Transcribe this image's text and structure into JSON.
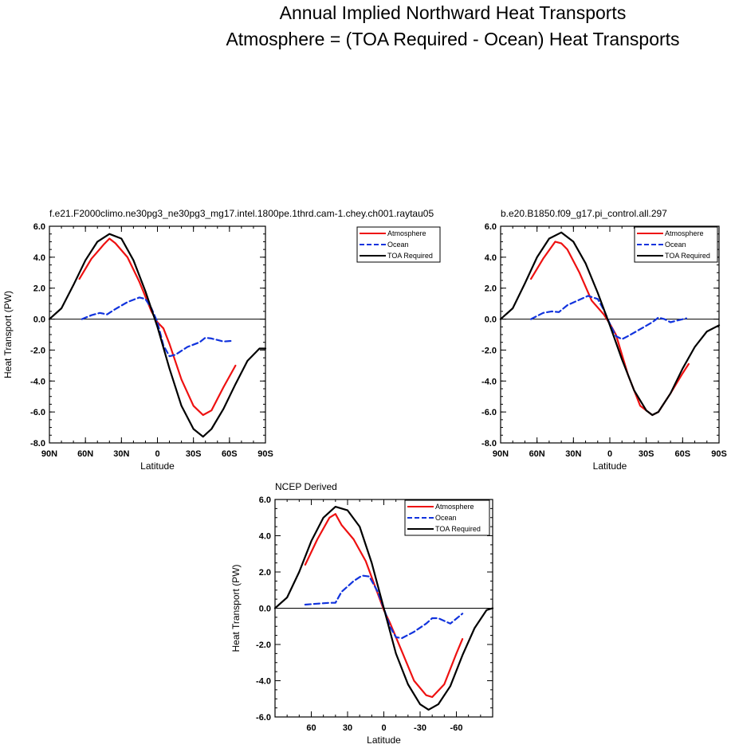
{
  "figure": {
    "title_line1": "Annual Implied Northward Heat Transports",
    "title_line2": "Atmosphere = (TOA Required - Ocean) Heat Transports"
  },
  "colors": {
    "Atmosphere": "#ee1111",
    "Ocean": "#1133dd",
    "TOA Required": "#000000"
  },
  "chart_data": [
    {
      "type": "line",
      "title": "f.e21.F2000climo.ne30pg3_ne30pg3_mg17.intel.1800pe.1thrd.cam-1.chey.ch001.raytau05",
      "xlabel": "Latitude",
      "ylabel": "Heat Transport (PW)",
      "xlim": [
        90,
        -90
      ],
      "ylim": [
        -8,
        6
      ],
      "xticks": [
        90,
        60,
        30,
        0,
        -30,
        -60,
        -90
      ],
      "xtick_labels": [
        "90N",
        "60N",
        "30N",
        "0",
        "30S",
        "60S",
        "90S"
      ],
      "yticks": [
        6,
        4,
        2,
        0,
        -2,
        -4,
        -6,
        -8
      ],
      "ytick_labels": [
        "6.0",
        "4.0",
        "2.0",
        "0.0",
        "-2.0",
        "-4.0",
        "-6.0",
        "-8.0"
      ],
      "legend": "top-right",
      "series": [
        {
          "name": "Atmosphere",
          "style": "solid",
          "x": [
            65,
            55,
            45,
            40,
            35,
            25,
            15,
            5,
            0,
            -5,
            -10,
            -20,
            -30,
            -38,
            -45,
            -55,
            -65
          ],
          "y": [
            2.6,
            3.9,
            4.8,
            5.2,
            4.9,
            4.0,
            2.4,
            0.5,
            -0.2,
            -0.6,
            -1.6,
            -3.9,
            -5.6,
            -6.2,
            -5.9,
            -4.4,
            -3.0
          ]
        },
        {
          "name": "Ocean",
          "style": "dashed",
          "x": [
            63,
            55,
            48,
            42,
            35,
            25,
            15,
            10,
            5,
            0,
            -5,
            -10,
            -15,
            -25,
            -35,
            -40,
            -45,
            -55,
            -63
          ],
          "y": [
            0.0,
            0.25,
            0.4,
            0.3,
            0.65,
            1.1,
            1.4,
            1.3,
            0.7,
            -0.2,
            -1.7,
            -2.4,
            -2.3,
            -1.8,
            -1.5,
            -1.2,
            -1.25,
            -1.45,
            -1.4
          ]
        },
        {
          "name": "TOA Required",
          "style": "solid",
          "x": [
            90,
            80,
            70,
            60,
            50,
            40,
            30,
            20,
            10,
            0,
            -10,
            -20,
            -30,
            -38,
            -45,
            -55,
            -65,
            -75,
            -85,
            -90
          ],
          "y": [
            0.0,
            0.7,
            2.2,
            3.8,
            5.0,
            5.5,
            5.2,
            3.8,
            1.8,
            -0.5,
            -3.2,
            -5.6,
            -7.1,
            -7.6,
            -7.1,
            -5.8,
            -4.2,
            -2.7,
            -1.9,
            -1.9
          ]
        }
      ]
    },
    {
      "type": "line",
      "title": "b.e20.B1850.f09_g17.pi_control.all.297",
      "xlabel": "Latitude",
      "ylabel": "",
      "xlim": [
        90,
        -90
      ],
      "ylim": [
        -8,
        6
      ],
      "xticks": [
        90,
        60,
        30,
        0,
        -30,
        -60,
        -90
      ],
      "xtick_labels": [
        "90N",
        "60N",
        "30N",
        "0",
        "30S",
        "60S",
        "90S"
      ],
      "yticks": [
        6,
        4,
        2,
        0,
        -2,
        -4,
        -6,
        -8
      ],
      "ytick_labels": [
        "6.0",
        "4.0",
        "2.0",
        "0.0",
        "-2.0",
        "-4.0",
        "-6.0",
        "-8.0"
      ],
      "legend": "top-right",
      "series": [
        {
          "name": "Atmosphere",
          "style": "solid",
          "x": [
            65,
            55,
            45,
            40,
            35,
            25,
            15,
            5,
            0,
            -5,
            -15,
            -25,
            -35,
            -40,
            -50,
            -60,
            -65
          ],
          "y": [
            2.6,
            3.9,
            5.0,
            4.9,
            4.5,
            3.0,
            1.2,
            0.3,
            -0.3,
            -1.0,
            -3.6,
            -5.6,
            -6.2,
            -6.0,
            -4.8,
            -3.5,
            -2.9
          ]
        },
        {
          "name": "Ocean",
          "style": "dashed",
          "x": [
            65,
            55,
            48,
            42,
            35,
            25,
            18,
            10,
            5,
            0,
            -5,
            -10,
            -15,
            -25,
            -35,
            -40,
            -45,
            -50,
            -55,
            -63
          ],
          "y": [
            0.0,
            0.4,
            0.5,
            0.45,
            0.9,
            1.25,
            1.5,
            1.3,
            0.6,
            -0.3,
            -1.1,
            -1.3,
            -1.1,
            -0.65,
            -0.2,
            0.1,
            0.0,
            -0.2,
            -0.1,
            0.05
          ]
        },
        {
          "name": "TOA Required",
          "style": "solid",
          "x": [
            90,
            80,
            70,
            60,
            50,
            40,
            30,
            20,
            10,
            0,
            -10,
            -20,
            -30,
            -35,
            -40,
            -50,
            -60,
            -70,
            -80,
            -90
          ],
          "y": [
            0.0,
            0.7,
            2.3,
            4.0,
            5.2,
            5.6,
            5.0,
            3.6,
            1.7,
            -0.4,
            -2.6,
            -4.6,
            -5.9,
            -6.2,
            -6.0,
            -4.8,
            -3.2,
            -1.8,
            -0.8,
            -0.4
          ]
        }
      ]
    },
    {
      "type": "line",
      "title": "NCEP Derived",
      "xlabel": "Latitude",
      "ylabel": "Heat Transport (PW)",
      "xlim": [
        90,
        -90
      ],
      "ylim": [
        -6,
        6
      ],
      "xticks": [
        60,
        30,
        0,
        -30,
        -60
      ],
      "xtick_labels": [
        "60",
        "30",
        "0",
        "-30",
        "-60"
      ],
      "yticks": [
        6,
        4,
        2,
        0,
        -2,
        -4,
        -6
      ],
      "ytick_labels": [
        "6.0",
        "4.0",
        "2.0",
        "0.0",
        "-2.0",
        "-4.0",
        "-6.0"
      ],
      "legend": "top-right",
      "series": [
        {
          "name": "Atmosphere",
          "style": "solid",
          "x": [
            65,
            55,
            45,
            40,
            35,
            25,
            15,
            5,
            0,
            -5,
            -15,
            -25,
            -35,
            -40,
            -50,
            -60,
            -65
          ],
          "y": [
            2.4,
            3.8,
            5.0,
            5.2,
            4.6,
            3.8,
            2.6,
            0.8,
            -0.1,
            -0.8,
            -2.4,
            -4.0,
            -4.8,
            -4.9,
            -4.2,
            -2.5,
            -1.7
          ]
        },
        {
          "name": "Ocean",
          "style": "dashed",
          "x": [
            65,
            55,
            45,
            40,
            35,
            25,
            18,
            12,
            5,
            0,
            -5,
            -10,
            -15,
            -25,
            -35,
            -40,
            -45,
            -55,
            -65
          ],
          "y": [
            0.2,
            0.25,
            0.3,
            0.3,
            0.9,
            1.5,
            1.8,
            1.75,
            0.9,
            0.0,
            -1.0,
            -1.6,
            -1.65,
            -1.3,
            -0.85,
            -0.55,
            -0.55,
            -0.85,
            -0.3
          ]
        },
        {
          "name": "TOA Required",
          "style": "solid",
          "x": [
            90,
            80,
            70,
            60,
            50,
            40,
            30,
            20,
            10,
            0,
            -10,
            -20,
            -30,
            -37,
            -45,
            -55,
            -65,
            -75,
            -85,
            -90
          ],
          "y": [
            0.0,
            0.6,
            2.0,
            3.7,
            5.0,
            5.6,
            5.4,
            4.5,
            2.5,
            0.0,
            -2.5,
            -4.2,
            -5.3,
            -5.6,
            -5.3,
            -4.3,
            -2.6,
            -1.1,
            -0.1,
            0.0
          ]
        }
      ]
    }
  ]
}
